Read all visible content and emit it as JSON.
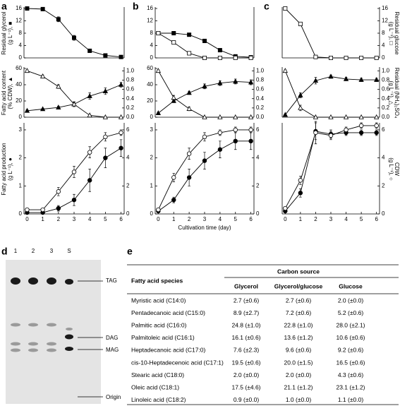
{
  "panel_labels": [
    "a",
    "b",
    "c",
    "d",
    "e"
  ],
  "chart_data": [
    {
      "type": "line",
      "x": [
        0,
        1,
        2,
        3,
        4,
        5,
        6
      ],
      "xlim": [
        -0.2,
        6.2
      ],
      "ylim": [
        0,
        16
      ],
      "yticks": [
        0,
        4,
        8,
        12,
        16
      ],
      "ylabel": [
        "Residual glycerol",
        "(g L⁻¹), ■"
      ],
      "series": [
        {
          "color": "#000000",
          "marker": "square",
          "filled": true,
          "values": [
            16,
            15.8,
            12.5,
            6.5,
            2.3,
            0.8,
            0.3
          ],
          "errors": [
            0.3,
            0.3,
            0.8,
            0.8,
            0.4,
            0.2,
            0.1
          ]
        }
      ]
    },
    {
      "type": "line",
      "x": [
        0,
        1,
        2,
        3,
        4,
        5,
        6
      ],
      "xlim": [
        -0.2,
        6.2
      ],
      "ylim": [
        0,
        60
      ],
      "yticks": [
        0,
        20,
        40,
        60
      ],
      "y2lim": [
        0,
        1.05
      ],
      "y2ticks": [
        {
          "value": 0,
          "label": "0.0"
        },
        {
          "value": 0.2,
          "label": "0.2"
        },
        {
          "value": 0.4,
          "label": "0.4"
        },
        {
          "value": 0.6,
          "label": "0.6"
        },
        {
          "value": 0.8,
          "label": "0.8"
        },
        {
          "value": 1,
          "label": "1.0"
        }
      ],
      "ylabel": [
        "Fatty acid content",
        "(% CDW), ▲"
      ],
      "series": [
        {
          "color": "#000000",
          "marker": "triangle",
          "filled": true,
          "values": [
            8,
            10,
            12,
            16,
            26,
            32,
            40
          ],
          "errors": [
            1,
            1,
            1.5,
            3,
            4,
            4,
            3
          ]
        },
        {
          "color": "#000000",
          "marker": "triangle",
          "filled": false,
          "axis": "y2",
          "values": [
            1.0,
            0.88,
            0.66,
            0.28,
            0.04,
            0,
            0
          ],
          "errors": [
            0.02,
            0.03,
            0.04,
            0.04,
            0.02,
            0,
            0
          ]
        }
      ]
    },
    {
      "type": "line",
      "x": [
        0,
        1,
        2,
        3,
        4,
        5,
        6
      ],
      "xlim": [
        -0.2,
        6.2
      ],
      "xticks": [
        0,
        1,
        2,
        3,
        4,
        5,
        6
      ],
      "ylim": [
        0,
        3.2
      ],
      "yticks": [
        0,
        1,
        2,
        3
      ],
      "y2lim": [
        0,
        6.4
      ],
      "y2ticks": [
        0,
        2,
        4,
        6
      ],
      "ylabel": [
        "Fatty acid production",
        "(g L⁻¹), ●"
      ],
      "series": [
        {
          "color": "#000000",
          "marker": "circle",
          "filled": true,
          "values": [
            0.05,
            0.05,
            0.2,
            0.5,
            1.2,
            2.0,
            2.35
          ],
          "errors": [
            0.02,
            0.02,
            0.1,
            0.2,
            0.4,
            0.35,
            0.3
          ]
        },
        {
          "color": "#000000",
          "marker": "circle",
          "filled": false,
          "axis": "y2",
          "values": [
            0.3,
            0.3,
            1.6,
            3.0,
            4.4,
            5.5,
            5.8
          ],
          "errors": [
            0.1,
            0.1,
            0.3,
            0.4,
            0.4,
            0.3,
            0.2
          ]
        }
      ]
    },
    {
      "type": "line",
      "x": [
        0,
        1,
        2,
        3,
        4,
        5,
        6
      ],
      "xlim": [
        -0.2,
        6.2
      ],
      "ylim": [
        0,
        16
      ],
      "yticks": [
        0,
        4,
        8,
        12,
        16
      ],
      "series": [
        {
          "color": "#000000",
          "marker": "square",
          "filled": true,
          "values": [
            8,
            8,
            7.5,
            5.5,
            2.5,
            0.5,
            0.2
          ],
          "errors": [
            0.3,
            0.3,
            0.5,
            0.6,
            0.5,
            0.2,
            0.1
          ]
        },
        {
          "color": "#000000",
          "marker": "square",
          "filled": false,
          "values": [
            8,
            5,
            1.5,
            0,
            0,
            0,
            0
          ],
          "errors": [
            0.3,
            0.4,
            0.4,
            0,
            0,
            0,
            0
          ]
        }
      ]
    },
    {
      "type": "line",
      "x": [
        0,
        1,
        2,
        3,
        4,
        5,
        6
      ],
      "xlim": [
        -0.2,
        6.2
      ],
      "ylim": [
        0,
        60
      ],
      "yticks": [
        0,
        20,
        40,
        60
      ],
      "y2lim": [
        0,
        1.05
      ],
      "y2ticks": [
        {
          "value": 0,
          "label": "0.0"
        },
        {
          "value": 0.2,
          "label": "0.2"
        },
        {
          "value": 0.4,
          "label": "0.4"
        },
        {
          "value": 0.6,
          "label": "0.6"
        },
        {
          "value": 0.8,
          "label": "0.8"
        },
        {
          "value": 1,
          "label": "1.0"
        }
      ],
      "series": [
        {
          "color": "#000000",
          "marker": "triangle",
          "filled": true,
          "values": [
            5,
            20,
            30,
            38,
            42,
            44,
            43
          ],
          "errors": [
            1,
            2,
            2,
            3,
            3,
            3,
            3
          ]
        },
        {
          "color": "#000000",
          "marker": "triangle",
          "filled": false,
          "axis": "y2",
          "values": [
            1.0,
            0.42,
            0.18,
            0,
            0,
            0,
            0
          ],
          "errors": [
            0.02,
            0.05,
            0.04,
            0,
            0,
            0,
            0
          ]
        }
      ]
    },
    {
      "type": "line",
      "x": [
        0,
        1,
        2,
        3,
        4,
        5,
        6
      ],
      "xlim": [
        -0.2,
        6.2
      ],
      "xticks": [
        0,
        1,
        2,
        3,
        4,
        5,
        6
      ],
      "xlabel": "Cultivation time (day)",
      "ylim": [
        0,
        3.2
      ],
      "yticks": [
        0,
        1,
        2,
        3
      ],
      "y2lim": [
        0,
        6.4
      ],
      "y2ticks": [
        0,
        2,
        4,
        6
      ],
      "series": [
        {
          "color": "#000000",
          "marker": "circle",
          "filled": true,
          "values": [
            0.1,
            0.5,
            1.3,
            1.9,
            2.3,
            2.6,
            2.6
          ],
          "errors": [
            0.05,
            0.1,
            0.3,
            0.3,
            0.3,
            0.3,
            0.3
          ]
        },
        {
          "color": "#000000",
          "marker": "circle",
          "filled": false,
          "axis": "y2",
          "values": [
            0.3,
            2.6,
            4.3,
            5.5,
            5.8,
            6.0,
            6.0
          ],
          "errors": [
            0.1,
            0.3,
            0.4,
            0.3,
            0.2,
            0.2,
            0.2
          ]
        }
      ]
    },
    {
      "type": "line",
      "x": [
        0,
        1,
        2,
        3,
        4,
        5,
        6
      ],
      "xlim": [
        -0.2,
        6.2
      ],
      "y2lim": [
        0,
        16
      ],
      "y2ticks": [
        0,
        4,
        8,
        12,
        16
      ],
      "y2label": [
        "Residual glucose",
        "(g L⁻¹), □"
      ],
      "series": [
        {
          "color": "#000000",
          "marker": "square",
          "filled": false,
          "axis": "y2",
          "values": [
            16,
            11,
            0.3,
            0,
            0,
            0,
            0
          ],
          "errors": [
            0.3,
            0.5,
            0.2,
            0,
            0,
            0,
            0
          ]
        }
      ]
    },
    {
      "type": "line",
      "x": [
        0,
        1,
        2,
        3,
        4,
        5,
        6
      ],
      "xlim": [
        -0.2,
        6.2
      ],
      "ylim": [
        0,
        60
      ],
      "y2lim": [
        0,
        1.05
      ],
      "y2ticks": [
        {
          "value": 0,
          "label": "0.0"
        },
        {
          "value": 0.2,
          "label": "0.2"
        },
        {
          "value": 0.4,
          "label": "0.4"
        },
        {
          "value": 0.6,
          "label": "0.6"
        },
        {
          "value": 0.8,
          "label": "0.8"
        },
        {
          "value": 1,
          "label": "1.0"
        }
      ],
      "y2label": [
        "Residual (NH₄)₂SO₄",
        "(g L⁻¹), △"
      ],
      "series": [
        {
          "color": "#000000",
          "marker": "triangle",
          "filled": true,
          "values": [
            3,
            27,
            45,
            50,
            47,
            46,
            46
          ],
          "errors": [
            1,
            3,
            4,
            2,
            2,
            2,
            2
          ]
        },
        {
          "color": "#000000",
          "marker": "triangle",
          "filled": false,
          "axis": "y2",
          "values": [
            1.0,
            0.2,
            0,
            0,
            0,
            0,
            0
          ],
          "errors": [
            0.02,
            0.06,
            0,
            0,
            0,
            0,
            0
          ]
        }
      ]
    },
    {
      "type": "line",
      "x": [
        0,
        1,
        2,
        3,
        4,
        5,
        6
      ],
      "xlim": [
        -0.2,
        6.2
      ],
      "xticks": [
        0,
        1,
        2,
        3,
        4,
        5,
        6
      ],
      "ylim": [
        0,
        3.2
      ],
      "y2lim": [
        0,
        6.4
      ],
      "y2ticks": [
        0,
        2,
        4,
        6
      ],
      "y2label": [
        "CDW",
        "(g L⁻¹), ○"
      ],
      "series": [
        {
          "color": "#000000",
          "marker": "circle",
          "filled": true,
          "values": [
            0.1,
            0.75,
            2.95,
            2.85,
            2.9,
            2.9,
            2.9
          ],
          "errors": [
            0.05,
            0.15,
            0.3,
            0.15,
            0.1,
            0.1,
            0.1
          ]
        },
        {
          "color": "#000000",
          "marker": "circle",
          "filled": false,
          "axis": "y2",
          "values": [
            0.4,
            2.4,
            5.8,
            5.6,
            6.0,
            6.3,
            6.3
          ],
          "errors": [
            0.1,
            0.3,
            0.8,
            0.3,
            0.2,
            0.2,
            0.2
          ]
        }
      ]
    }
  ],
  "tlc": {
    "lanes": [
      "1",
      "2",
      "3",
      "S"
    ],
    "bands": [
      "TAG",
      "DAG",
      "MAG",
      "Origin"
    ]
  },
  "table": {
    "group_header": "Carbon source",
    "header": [
      "Fatty acid species",
      "Glycerol",
      "Glycerol/glucose",
      "Glucose"
    ],
    "rows": [
      [
        "Myristic acid (C14:0)",
        "2.7 (±0.6)",
        "2.7 (±0.6)",
        "2.0 (±0.0)"
      ],
      [
        "Pentadecanoic acid (C15:0)",
        "8.9 (±2.7)",
        "7.2 (±0.6)",
        "5.2 (±0.6)"
      ],
      [
        "Palmitic acid (C16:0)",
        "24.8 (±1.0)",
        "22.8 (±1.0)",
        "28.0 (±2.1)"
      ],
      [
        "Palmitoleic acid (C16:1)",
        "16.1 (±0.6)",
        "13.6 (±1.2)",
        "10.6 (±0.6)"
      ],
      [
        "Heptadecanoic acid (C17:0)",
        "7.6 (±2.3)",
        "9.6 (±0.6)",
        "9.2 (±0.6)"
      ],
      [
        "cis-10-Heptadecenoic acid (C17:1)",
        "19.5 (±0.6)",
        "20.0 (±1.5)",
        "16.5 (±0.6)"
      ],
      [
        "Stearic acid (C18:0)",
        "2.0 (±0.0)",
        "2.0 (±0.0)",
        "4.3 (±0.6)"
      ],
      [
        "Oleic acid (C18:1)",
        "17.5 (±4.6)",
        "21.1 (±1.2)",
        "23.1 (±1.2)"
      ],
      [
        "Linoleic acid (C18:2)",
        "0.9 (±0.0)",
        "1.0 (±0.0)",
        "1.1 (±0.0)"
      ]
    ]
  }
}
